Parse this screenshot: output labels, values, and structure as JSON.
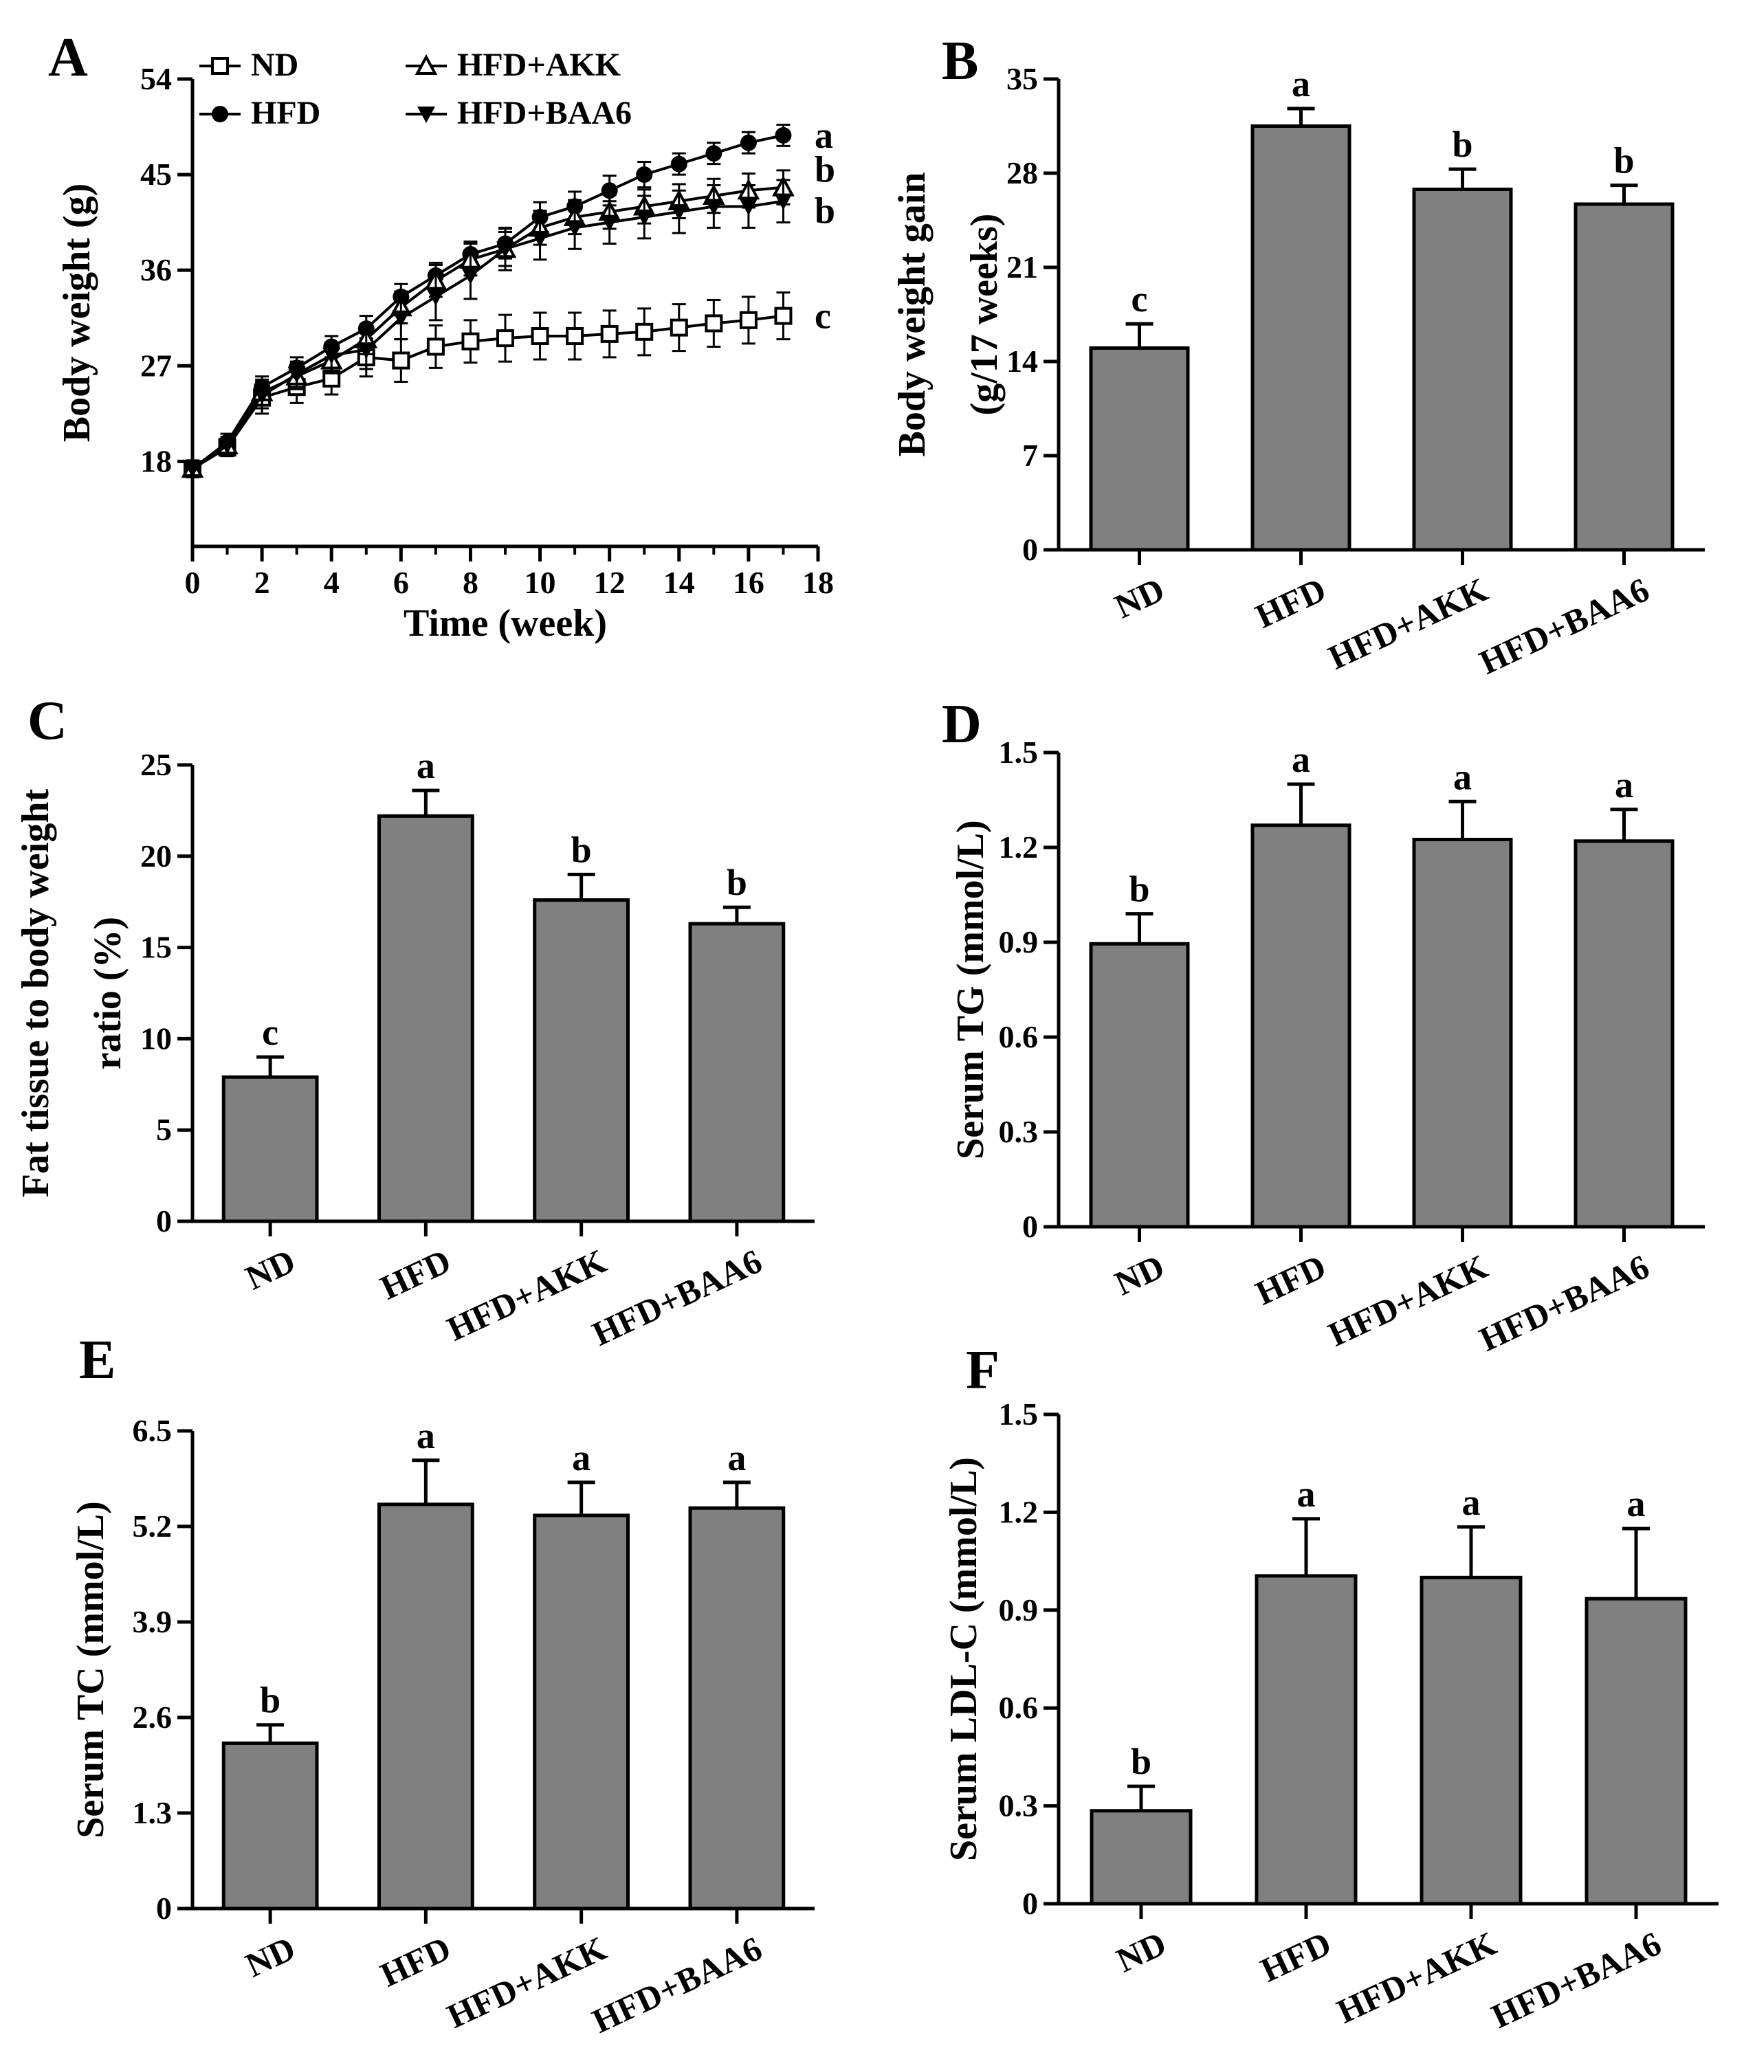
{
  "colors": {
    "bar_fill": "#808080",
    "ink": "#000000",
    "background": "#ffffff"
  },
  "categories": [
    "ND",
    "HFD",
    "HFD+AKK",
    "HFD+BAA6"
  ],
  "chart_data": [
    {
      "panel": "A",
      "type": "line",
      "xlabel": "Time (week)",
      "ylabel": "Body weight (g)",
      "xlim": [
        0,
        18
      ],
      "ylim": [
        10,
        54
      ],
      "x_ticks": [
        0,
        2,
        4,
        6,
        8,
        10,
        12,
        14,
        16,
        18
      ],
      "y_ticks": [
        18,
        27,
        36,
        45,
        54
      ],
      "x": [
        0,
        1,
        2,
        3,
        4,
        5,
        6,
        7,
        8,
        9,
        10,
        11,
        12,
        13,
        14,
        15,
        16,
        17
      ],
      "legend_position": "top-left",
      "series": [
        {
          "name": "ND",
          "marker": "open-square",
          "values": [
            17.3,
            19.3,
            24.0,
            25.0,
            25.8,
            27.8,
            27.5,
            28.8,
            29.3,
            29.6,
            29.8,
            29.8,
            30.0,
            30.2,
            30.6,
            31.0,
            31.3,
            31.7
          ],
          "errors": [
            0.8,
            0.8,
            1.5,
            1.5,
            1.5,
            1.8,
            2.0,
            2.0,
            2.0,
            2.2,
            2.2,
            2.2,
            2.2,
            2.2,
            2.2,
            2.2,
            2.2,
            2.2
          ],
          "sig": "c"
        },
        {
          "name": "HFD",
          "marker": "filled-circle",
          "values": [
            17.3,
            19.8,
            25.0,
            26.8,
            28.8,
            30.5,
            33.5,
            35.5,
            37.5,
            38.5,
            41.0,
            42.0,
            43.5,
            45.0,
            46.0,
            47.0,
            48.0,
            48.7
          ],
          "errors": [
            0.6,
            0.8,
            1.0,
            1.0,
            1.0,
            1.2,
            1.2,
            1.2,
            1.2,
            1.4,
            1.4,
            1.4,
            1.4,
            1.2,
            1.0,
            1.0,
            1.0,
            1.0
          ],
          "sig": "a"
        },
        {
          "name": "HFD+AKK",
          "marker": "open-triangle-up",
          "values": [
            17.3,
            19.5,
            24.5,
            26.0,
            27.5,
            29.5,
            32.5,
            35.0,
            37.0,
            38.0,
            40.0,
            41.0,
            41.5,
            42.0,
            42.5,
            43.0,
            43.5,
            43.8
          ],
          "errors": [
            0.6,
            0.8,
            1.2,
            1.2,
            1.2,
            1.4,
            1.5,
            1.5,
            1.5,
            1.6,
            1.6,
            1.6,
            1.6,
            1.6,
            1.6,
            1.6,
            1.6,
            1.6
          ],
          "sig": "b"
        },
        {
          "name": "HFD+BAA6",
          "marker": "filled-triangle-down",
          "values": [
            17.3,
            19.5,
            24.2,
            26.2,
            28.0,
            28.5,
            31.5,
            33.5,
            35.5,
            38.0,
            39.0,
            40.0,
            40.5,
            41.0,
            41.5,
            42.0,
            42.0,
            42.5
          ],
          "errors": [
            0.6,
            0.8,
            1.2,
            1.2,
            1.2,
            1.8,
            2.0,
            2.2,
            2.2,
            2.0,
            2.0,
            2.0,
            2.0,
            2.0,
            2.0,
            2.0,
            2.0,
            2.0
          ],
          "sig": "b"
        }
      ]
    },
    {
      "panel": "B",
      "type": "bar",
      "ylabel": [
        "Body weight gain",
        "(g/17 weeks)"
      ],
      "ylim": [
        0,
        35
      ],
      "y_ticks": [
        0,
        7,
        14,
        21,
        28,
        35
      ],
      "values": [
        15.0,
        31.5,
        26.8,
        25.7
      ],
      "errors": [
        1.8,
        1.3,
        1.5,
        1.4
      ],
      "sig": [
        "c",
        "a",
        "b",
        "b"
      ]
    },
    {
      "panel": "C",
      "type": "bar",
      "ylabel": [
        "Fat tissue to body weight",
        "ratio (%)"
      ],
      "ylim": [
        0,
        25
      ],
      "y_ticks": [
        0,
        5,
        10,
        15,
        20,
        25
      ],
      "values": [
        7.9,
        22.2,
        17.6,
        16.3
      ],
      "errors": [
        1.1,
        1.4,
        1.4,
        0.9
      ],
      "sig": [
        "c",
        "a",
        "b",
        "b"
      ]
    },
    {
      "panel": "D",
      "type": "bar",
      "ylabel": [
        "Serum TG (mmol/L)"
      ],
      "ylim": [
        0,
        1.5
      ],
      "y_ticks": [
        "0",
        "0.3",
        "0.6",
        "0.9",
        "1.2",
        "1.5"
      ],
      "values": [
        0.895,
        1.27,
        1.225,
        1.22
      ],
      "errors": [
        0.095,
        0.13,
        0.12,
        0.1
      ],
      "sig": [
        "b",
        "a",
        "a",
        "a"
      ]
    },
    {
      "panel": "E",
      "type": "bar",
      "ylabel": [
        "Serum TC (mmol/L)"
      ],
      "ylim": [
        0,
        6.5
      ],
      "y_ticks": [
        "0",
        "1.3",
        "2.6",
        "3.9",
        "5.2",
        "6.5"
      ],
      "values": [
        2.25,
        5.5,
        5.35,
        5.45
      ],
      "errors": [
        0.25,
        0.6,
        0.45,
        0.35
      ],
      "sig": [
        "b",
        "a",
        "a",
        "a"
      ]
    },
    {
      "panel": "F",
      "type": "bar",
      "ylabel": [
        "Serum LDL-C (mmol/L)"
      ],
      "ylim": [
        0,
        1.5
      ],
      "y_ticks": [
        "0",
        "0.3",
        "0.6",
        "0.9",
        "1.2",
        "1.5"
      ],
      "values": [
        0.285,
        1.005,
        1.0,
        0.935
      ],
      "errors": [
        0.075,
        0.175,
        0.155,
        0.215
      ],
      "sig": [
        "b",
        "a",
        "a",
        "a"
      ]
    }
  ]
}
